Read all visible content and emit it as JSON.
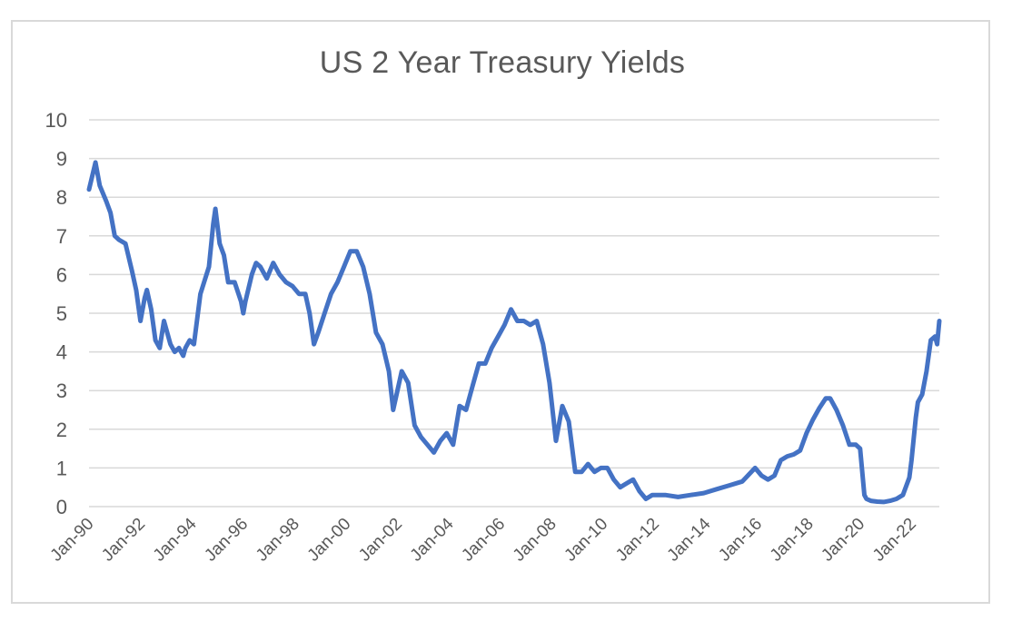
{
  "chart_data": {
    "type": "line",
    "title": "US 2 Year Treasury Yields",
    "xlabel": "",
    "ylabel": "",
    "ylim": [
      0,
      10
    ],
    "y_ticks": [
      "0",
      "1",
      "2",
      "3",
      "4",
      "5",
      "6",
      "7",
      "8",
      "9",
      "10"
    ],
    "x_tick_labels": [
      "Jan-90",
      "Jan-92",
      "Jan-94",
      "Jan-96",
      "Jan-98",
      "Jan-00",
      "Jan-02",
      "Jan-04",
      "Jan-06",
      "Jan-08",
      "Jan-10",
      "Jan-12",
      "Jan-14",
      "Jan-16",
      "Jan-18",
      "Jan-20",
      "Jan-22"
    ],
    "grid": "horizontal",
    "legend": "none",
    "line_color": "#4472c4",
    "series": [
      {
        "x": [
          "1990-01",
          "1990-04",
          "1990-06",
          "1990-09",
          "1990-11",
          "1991-01",
          "1991-03",
          "1991-06",
          "1991-09",
          "1991-11",
          "1992-01",
          "1992-03",
          "1992-04",
          "1992-06",
          "1992-08",
          "1992-10",
          "1992-12",
          "1993-03",
          "1993-05",
          "1993-07",
          "1993-09",
          "1993-10",
          "1993-12",
          "1994-02",
          "1994-05",
          "1994-09",
          "1994-11",
          "1994-12",
          "1995-02",
          "1995-04",
          "1995-06",
          "1995-09",
          "1995-12",
          "1996-01",
          "1996-02",
          "1996-05",
          "1996-07",
          "1996-09",
          "1996-12",
          "1997-03",
          "1997-06",
          "1997-09",
          "1997-12",
          "1998-03",
          "1998-06",
          "1998-08",
          "1998-10",
          "1998-12",
          "1999-03",
          "1999-06",
          "1999-09",
          "1999-12",
          "2000-03",
          "2000-06",
          "2000-09",
          "2000-12",
          "2001-03",
          "2001-06",
          "2001-09",
          "2001-11",
          "2002-01",
          "2002-03",
          "2002-06",
          "2002-09",
          "2002-12",
          "2003-03",
          "2003-06",
          "2003-09",
          "2003-12",
          "2004-03",
          "2004-06",
          "2004-09",
          "2004-12",
          "2005-03",
          "2005-06",
          "2005-09",
          "2005-12",
          "2006-03",
          "2006-06",
          "2006-09",
          "2006-12",
          "2007-03",
          "2007-06",
          "2007-09",
          "2007-12",
          "2008-03",
          "2008-06",
          "2008-09",
          "2008-12",
          "2009-03",
          "2009-06",
          "2009-09",
          "2009-12",
          "2010-03",
          "2010-06",
          "2010-09",
          "2010-12",
          "2011-03",
          "2011-06",
          "2011-09",
          "2011-12",
          "2012-06",
          "2012-12",
          "2013-06",
          "2013-12",
          "2014-06",
          "2014-12",
          "2015-06",
          "2015-12",
          "2016-03",
          "2016-06",
          "2016-09",
          "2016-12",
          "2017-03",
          "2017-06",
          "2017-09",
          "2017-12",
          "2018-03",
          "2018-06",
          "2018-09",
          "2018-11",
          "2019-02",
          "2019-05",
          "2019-08",
          "2019-11",
          "2020-01",
          "2020-03",
          "2020-04",
          "2020-06",
          "2020-09",
          "2020-12",
          "2021-03",
          "2021-06",
          "2021-09",
          "2021-12",
          "2022-01",
          "2022-03",
          "2022-04",
          "2022-06",
          "2022-08",
          "2022-10",
          "2022-12",
          "2023-01",
          "2023-02"
        ],
        "values": [
          8.2,
          8.9,
          8.3,
          7.9,
          7.6,
          7.0,
          6.9,
          6.8,
          6.1,
          5.6,
          4.8,
          5.4,
          5.6,
          5.1,
          4.3,
          4.1,
          4.8,
          4.2,
          4.0,
          4.1,
          3.9,
          4.1,
          4.3,
          4.2,
          5.5,
          6.2,
          7.3,
          7.7,
          6.8,
          6.5,
          5.8,
          5.8,
          5.3,
          5.0,
          5.3,
          6.0,
          6.3,
          6.2,
          5.9,
          6.3,
          6.0,
          5.8,
          5.7,
          5.5,
          5.5,
          5.0,
          4.2,
          4.5,
          5.0,
          5.5,
          5.8,
          6.2,
          6.6,
          6.6,
          6.2,
          5.5,
          4.5,
          4.2,
          3.5,
          2.5,
          3.0,
          3.5,
          3.2,
          2.1,
          1.8,
          1.6,
          1.4,
          1.7,
          1.9,
          1.6,
          2.6,
          2.5,
          3.1,
          3.7,
          3.7,
          4.1,
          4.4,
          4.7,
          5.1,
          4.8,
          4.8,
          4.7,
          4.8,
          4.2,
          3.2,
          1.7,
          2.6,
          2.2,
          0.9,
          0.9,
          1.1,
          0.9,
          1.0,
          1.0,
          0.7,
          0.5,
          0.6,
          0.7,
          0.4,
          0.2,
          0.3,
          0.3,
          0.25,
          0.3,
          0.35,
          0.45,
          0.55,
          0.65,
          1.0,
          0.8,
          0.7,
          0.8,
          1.2,
          1.3,
          1.35,
          1.45,
          1.9,
          2.25,
          2.55,
          2.8,
          2.8,
          2.5,
          2.1,
          1.6,
          1.6,
          1.5,
          0.3,
          0.2,
          0.15,
          0.13,
          0.12,
          0.15,
          0.2,
          0.3,
          0.75,
          1.2,
          2.3,
          2.7,
          2.9,
          3.5,
          4.3,
          4.4,
          4.2,
          4.8
        ]
      }
    ]
  }
}
